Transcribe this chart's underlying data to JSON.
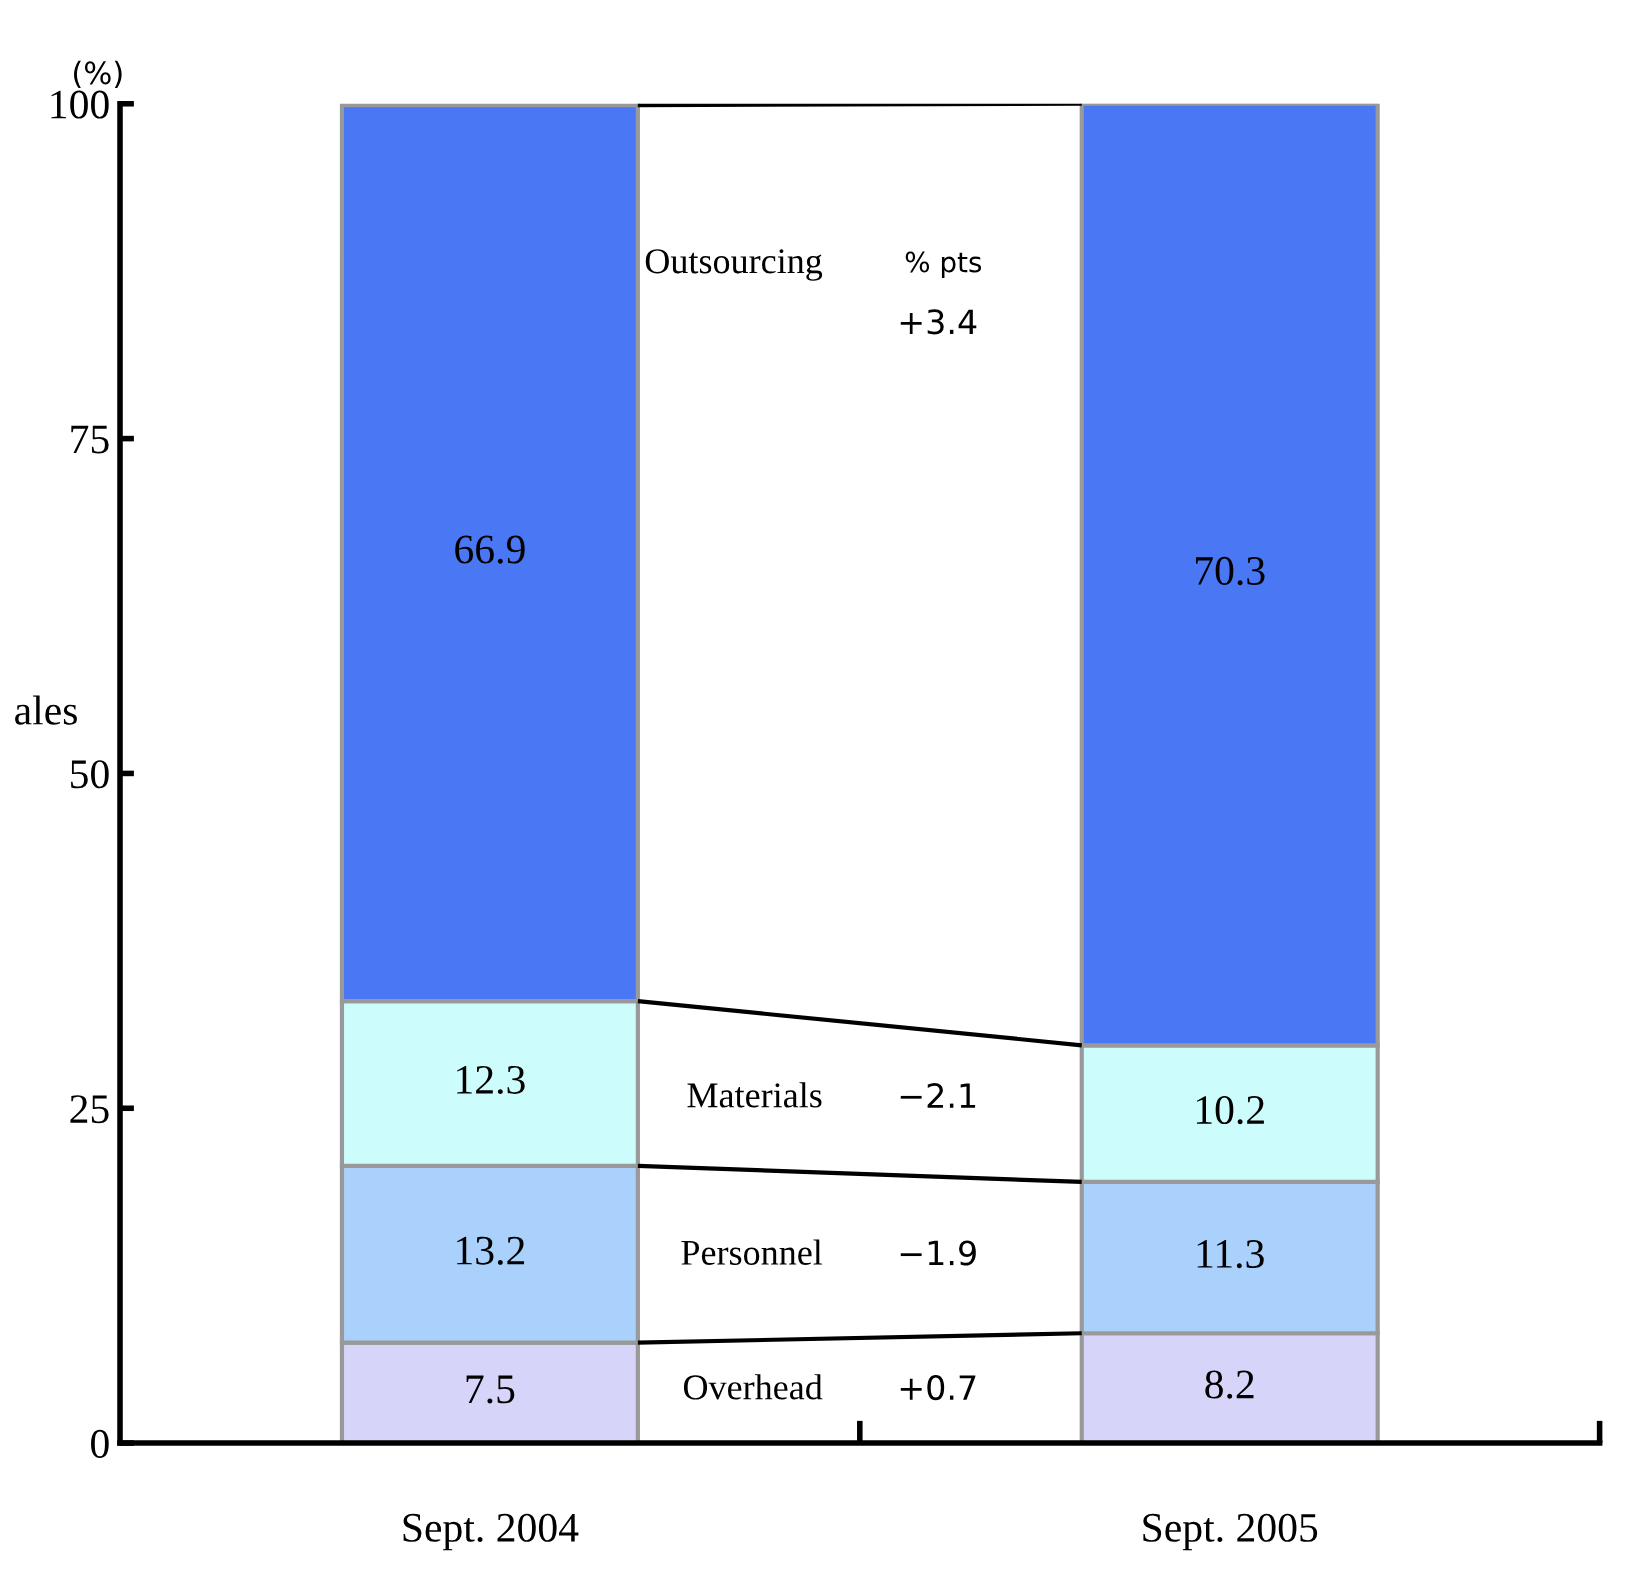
{
  "chart_data": {
    "type": "bar",
    "stacked": true,
    "ylabel": "ales",
    "categories": [
      "Sept. 2004",
      "Sept. 2005"
    ],
    "series": [
      {
        "name": "Overhead",
        "color": "#d6d4f8",
        "values": [
          7.5,
          8.2
        ]
      },
      {
        "name": "Personnel",
        "color": "#a9d1fb",
        "values": [
          13.2,
          11.3
        ]
      },
      {
        "name": "Materials",
        "color": "#ccfcfc",
        "values": [
          12.3,
          10.2
        ]
      },
      {
        "name": "Outsourcing",
        "color": "#4a78f4",
        "values": [
          66.9,
          70.3
        ]
      }
    ],
    "ylim": [
      0,
      100
    ],
    "yticks": [
      0,
      25,
      50,
      75,
      100
    ],
    "grid": false,
    "legend": false,
    "data_labels": true,
    "annotations": [
      "(%)",
      "% pts",
      "+0.7",
      "−1.9",
      "−2.1",
      "+3.4"
    ]
  }
}
